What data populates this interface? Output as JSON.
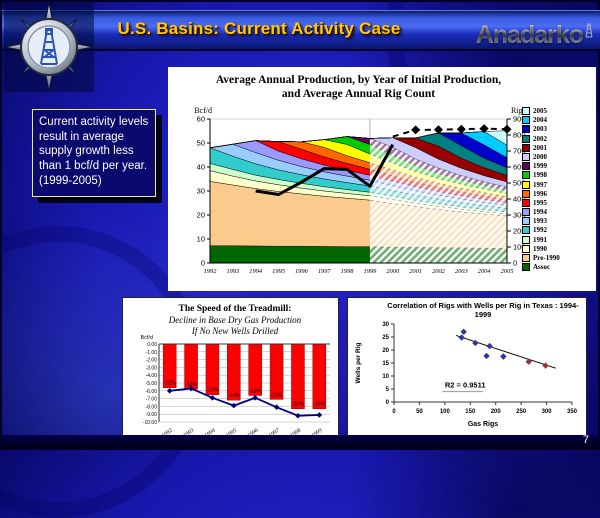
{
  "slide": {
    "title": "U.S. Basins: Current Activity Case",
    "logo_text": "Anadarko",
    "page_number": "7"
  },
  "callout": {
    "text": "Current activity levels result in average supply growth less than 1 bcf/d per year. (1999-2005)"
  },
  "chart_data": [
    {
      "type": "area",
      "title_line1": "Average Annual Production, by Year of Initial Production,",
      "title_line2": "and Average Annual Rig Count",
      "left_axis_unit": "Bcf/d",
      "right_axis_unit": "Rigs",
      "x": [
        1992,
        1993,
        1994,
        1995,
        1996,
        1997,
        1998,
        1999,
        2000,
        2001,
        2002,
        2003,
        2004,
        2005
      ],
      "ylim_left": [
        0,
        60
      ],
      "ytick_step_left": 10,
      "ylim_right": [
        0,
        900
      ],
      "ytick_step_right": 100,
      "hatch_from_year": 1999,
      "hatch_top_series": "1999",
      "series": [
        {
          "name": "Assoc",
          "color": "#006600",
          "values": [
            7.2,
            7.2,
            7.1,
            7.0,
            7.0,
            6.9,
            6.8,
            6.8,
            6.6,
            6.5,
            6.4,
            6.3,
            6.2,
            6.1
          ]
        },
        {
          "name": "Pre-1990",
          "color": "#FBCB8D",
          "values": [
            26.8,
            25.3,
            23.9,
            22.8,
            21.8,
            20.9,
            20.2,
            19.4,
            18.2,
            17.0,
            15.9,
            15.0,
            14.2,
            13.5
          ]
        },
        {
          "name": "1990",
          "color": "#FFFFCC",
          "values": [
            4.5,
            3.7,
            3.2,
            2.8,
            2.4,
            2.2,
            2.0,
            1.8,
            1.6,
            1.4,
            1.3,
            1.1,
            1.0,
            0.9
          ]
        },
        {
          "name": "1991",
          "color": "#CCFFCC",
          "values": [
            3.0,
            2.8,
            2.4,
            2.2,
            2.0,
            1.8,
            1.6,
            1.5,
            1.4,
            1.2,
            1.1,
            1.0,
            0.9,
            0.8
          ]
        },
        {
          "name": "1992",
          "color": "#33CCCC",
          "values": [
            6.5,
            5.5,
            4.7,
            4.0,
            3.6,
            3.2,
            2.9,
            2.6,
            2.3,
            2.1,
            1.9,
            1.7,
            1.6,
            1.4
          ]
        },
        {
          "name": "1993",
          "color": "#99CCFF",
          "values": [
            0,
            5.0,
            4.7,
            4.0,
            3.4,
            3.0,
            2.7,
            2.4,
            2.1,
            1.9,
            1.7,
            1.5,
            1.4,
            1.3
          ]
        },
        {
          "name": "1994",
          "color": "#9999FF",
          "values": [
            0,
            0,
            5.0,
            3.8,
            3.2,
            2.8,
            2.4,
            2.1,
            1.9,
            1.7,
            1.5,
            1.4,
            1.2,
            1.1
          ]
        },
        {
          "name": "1995",
          "color": "#FF0000",
          "values": [
            0,
            0,
            0,
            4.0,
            4.0,
            3.4,
            2.9,
            2.5,
            2.2,
            1.9,
            1.7,
            1.5,
            1.4,
            1.2
          ]
        },
        {
          "name": "1996",
          "color": "#FF6600",
          "values": [
            0,
            0,
            0,
            0,
            3.1,
            4.0,
            3.2,
            2.7,
            2.4,
            2.0,
            1.7,
            1.6,
            1.4,
            1.3
          ]
        },
        {
          "name": "1997",
          "color": "#FFFF00",
          "values": [
            0,
            0,
            0,
            0,
            0,
            3.2,
            4.7,
            3.6,
            3.0,
            2.4,
            2.0,
            1.7,
            1.5,
            1.4
          ]
        },
        {
          "name": "1998",
          "color": "#00CC00",
          "values": [
            0,
            0,
            0,
            0,
            0,
            0,
            3.3,
            4.0,
            3.2,
            2.5,
            2.1,
            1.8,
            1.5,
            1.3
          ]
        },
        {
          "name": "1999",
          "color": "#660066",
          "values": [
            0,
            0,
            0,
            0,
            0,
            0,
            0,
            2.5,
            3.3,
            2.7,
            2.2,
            1.8,
            1.5,
            1.3
          ]
        },
        {
          "name": "2000",
          "color": "#CCCCFF",
          "values": [
            0,
            0,
            0,
            0,
            0,
            0,
            0,
            0,
            4.0,
            4.8,
            3.8,
            3.1,
            2.6,
            2.2
          ]
        },
        {
          "name": "2001",
          "color": "#990000",
          "values": [
            0,
            0,
            0,
            0,
            0,
            0,
            0,
            0,
            0,
            4.0,
            5.4,
            4.2,
            3.3,
            2.7
          ]
        },
        {
          "name": "2002",
          "color": "#008080",
          "values": [
            0,
            0,
            0,
            0,
            0,
            0,
            0,
            0,
            0,
            0,
            5.5,
            5.2,
            4.0,
            3.2
          ]
        },
        {
          "name": "2003",
          "color": "#0000CC",
          "values": [
            0,
            0,
            0,
            0,
            0,
            0,
            0,
            0,
            0,
            0,
            0,
            5.3,
            5.5,
            4.2
          ]
        },
        {
          "name": "2004",
          "color": "#00CCFF",
          "values": [
            0,
            0,
            0,
            0,
            0,
            0,
            0,
            0,
            0,
            0,
            0,
            0,
            5.6,
            5.2
          ]
        },
        {
          "name": "2005",
          "color": "#CCFFFF",
          "values": [
            0,
            0,
            0,
            0,
            0,
            0,
            0,
            0,
            0,
            0,
            0,
            0,
            0,
            6.0
          ]
        }
      ],
      "legend_order": [
        "2005",
        "2004",
        "2003",
        "2002",
        "2001",
        "2000",
        "1999",
        "1998",
        "1997",
        "1996",
        "1995",
        "1994",
        "1993",
        "1992",
        "1991",
        "1990",
        "Pre-1990",
        "Assoc"
      ],
      "rig_line_actual": {
        "x": [
          1994,
          1995,
          1996,
          1997,
          1998,
          1999,
          2000
        ],
        "values": [
          450,
          428,
          505,
          590,
          585,
          480,
          740
        ],
        "color": "#000000"
      },
      "rig_line_forecast": {
        "x": [
          2000,
          2001,
          2002,
          2003,
          2004,
          2005
        ],
        "values": [
          790,
          832,
          833,
          836,
          840,
          836
        ],
        "color": "#000000"
      }
    },
    {
      "type": "bar",
      "title_line1": "The Speed of the Treadmill:",
      "title_line2": "Decline in Base Dry Gas Production",
      "title_line3": "If No New Wells Drilled",
      "y_axis_unit": "Bcf/d",
      "categories": [
        1992,
        1993,
        1994,
        1995,
        1996,
        1997,
        1998,
        1999
      ],
      "bar_values": [
        -5.6,
        -5.8,
        -6.5,
        -7.2,
        -6.6,
        -7.1,
        -8.3,
        -8.3
      ],
      "bar_labels": [
        "-12%",
        "-12%",
        "-13%",
        "-14%",
        "-13%",
        "-14%",
        "-16%",
        "-16%"
      ],
      "line_values": [
        -6.0,
        -5.7,
        -6.9,
        -7.9,
        -6.9,
        -8.1,
        -9.2,
        -9.1
      ],
      "yticks": [
        "0.00",
        "-1.00",
        "-2.00",
        "-3.00",
        "-4.00",
        "-5.00",
        "-6.00",
        "-7.00",
        "-8.00",
        "-9.00",
        "-10.00"
      ],
      "ylim": [
        0,
        -10
      ],
      "bar_color": "#FF0000",
      "line_color": "#000080"
    },
    {
      "type": "scatter",
      "title_line1": "Correlation of Rigs with Wells per Rig in Texas : 1994-",
      "title_line2": "1999",
      "xlabel": "Gas Rigs",
      "ylabel": "Wells per Rig",
      "xlim": [
        0,
        350
      ],
      "xtick_step": 50,
      "ylim": [
        0,
        30
      ],
      "ytick_step": 5,
      "points_blue": [
        [
          133,
          24.8
        ],
        [
          137,
          27
        ],
        [
          160,
          22.7
        ],
        [
          188,
          21.5
        ],
        [
          182,
          17.7
        ],
        [
          215,
          17.5
        ]
      ],
      "points_red": [
        [
          265,
          15.5
        ],
        [
          298,
          14
        ]
      ],
      "trendline": [
        [
          122,
          25.6
        ],
        [
          318,
          13.0
        ]
      ],
      "r2_label": "R2 = 0.9511",
      "point_color_blue": "#333399",
      "point_color_red": "#993333"
    }
  ]
}
